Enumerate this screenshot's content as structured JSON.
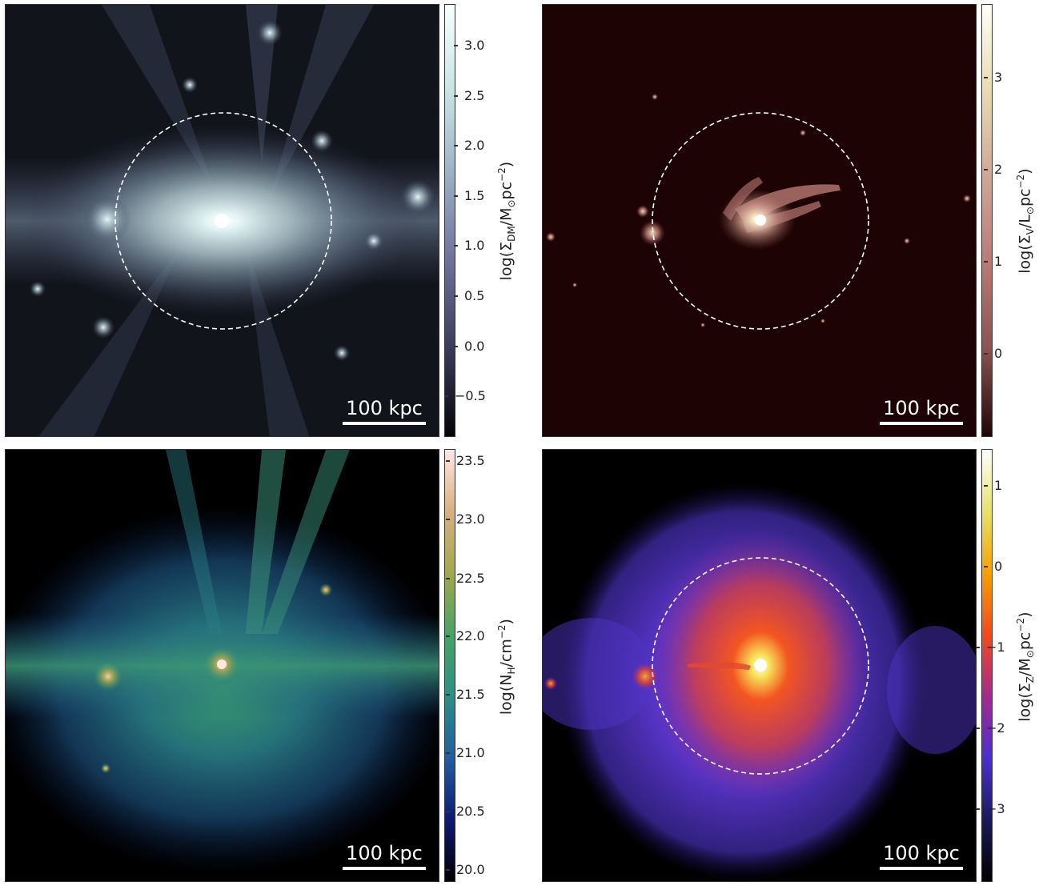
{
  "panels": [
    {
      "id": "dm",
      "colormap": "bone",
      "colorbar": {
        "label": "log(Σ_DM/M⊙pc⁻²)",
        "ticks": [
          "3.0",
          "2.5",
          "2.0",
          "1.5",
          "1.0",
          "0.5",
          "0.0",
          "−0.5"
        ],
        "gradient": [
          "#f7ffff",
          "#c9e3e4",
          "#9aaec2",
          "#6d6f98",
          "#3a3a58",
          "#050508"
        ]
      },
      "scalebar": "100 kpc",
      "has_circle": true
    },
    {
      "id": "stars",
      "colormap": "pink",
      "colorbar": {
        "label": "log(Σ_V/L⊙pc⁻²)",
        "ticks": [
          "3",
          "2",
          "1",
          "0"
        ],
        "gradient": [
          "#fffff8",
          "#e9dbb0",
          "#cfa696",
          "#b97a74",
          "#8a5250",
          "#200506"
        ]
      },
      "scalebar": "100 kpc",
      "has_circle": true
    },
    {
      "id": "gas",
      "colormap": "gist_earth",
      "colorbar": {
        "label": "log(N_H/cm⁻²)",
        "ticks": [
          "23.5",
          "23.0",
          "22.5",
          "22.0",
          "21.5",
          "21.0",
          "20.5",
          "20.0"
        ],
        "gradient": [
          "#fde7e7",
          "#d7b081",
          "#a2a84e",
          "#48a365",
          "#2b8f86",
          "#245c9e",
          "#0e1a72",
          "#000000"
        ]
      },
      "scalebar": "100 kpc",
      "has_circle": false
    },
    {
      "id": "metals",
      "colormap": "CMRmap",
      "colorbar": {
        "label": "log(Σ_Z/M⊙pc⁻²)",
        "ticks": [
          "1",
          "0",
          "−1",
          "−2",
          "−3"
        ],
        "gradient": [
          "#ffffff",
          "#e6e26a",
          "#f4a100",
          "#f24a20",
          "#a22b8c",
          "#4b2fd2",
          "#1a1a5a",
          "#000000"
        ]
      },
      "scalebar": "100 kpc",
      "has_circle": true
    }
  ],
  "label_parts": {
    "dm": {
      "pre": "log(Σ",
      "sub": "DM",
      "mid": "/M",
      "sub2": "⊙",
      "post": "pc",
      "sup": "−2",
      "end": ")"
    },
    "stars": {
      "pre": "log(Σ",
      "sub": "V",
      "mid": "/L",
      "sub2": "⊙",
      "post": "pc",
      "sup": "−2",
      "end": ")"
    },
    "gas": {
      "pre": "log(N",
      "sub": "H",
      "mid": "/cm",
      "sub2": "",
      "post": "",
      "sup": "−2",
      "end": ")"
    },
    "metals": {
      "pre": "log(Σ",
      "sub": "Z",
      "mid": "/M",
      "sub2": "⊙",
      "post": "pc",
      "sup": "−2",
      "end": ")"
    }
  }
}
